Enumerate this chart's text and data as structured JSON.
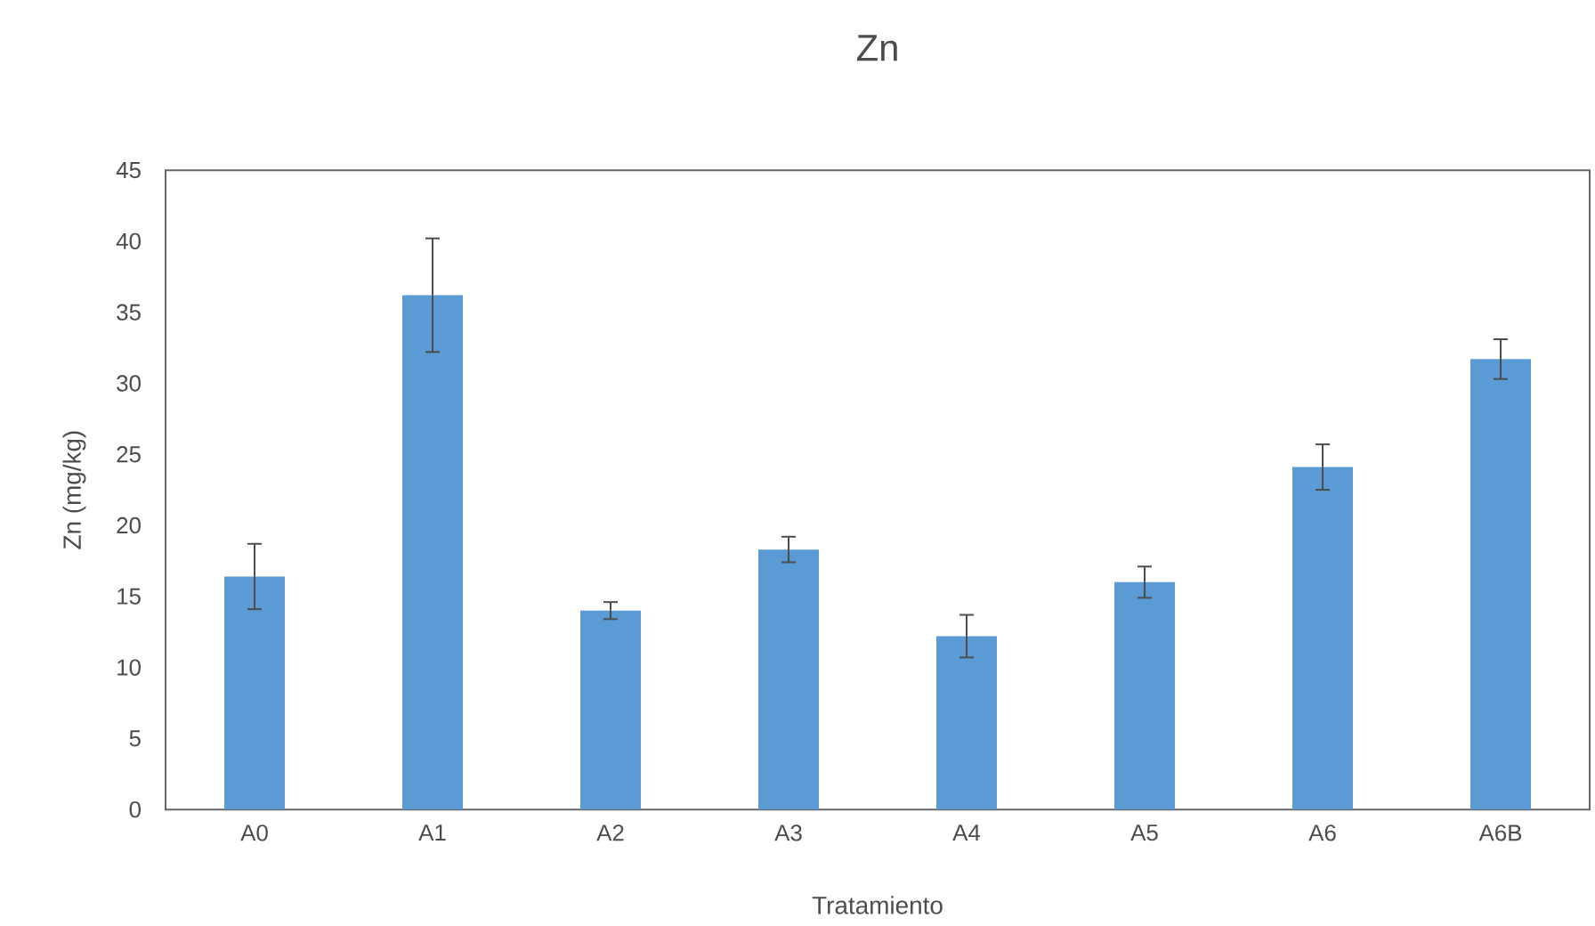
{
  "chart_data": {
    "type": "bar",
    "title": "Zn",
    "xlabel": "Tratamiento",
    "ylabel": "Zn (mg/kg)",
    "categories": [
      "A0",
      "A1",
      "A2",
      "A3",
      "A4",
      "A5",
      "A6",
      "A6B"
    ],
    "values": [
      16.4,
      36.2,
      14.0,
      18.3,
      12.2,
      16.0,
      24.1,
      31.7
    ],
    "errors": [
      2.3,
      4.0,
      0.6,
      0.9,
      1.5,
      1.1,
      1.6,
      1.4
    ],
    "color": "#5b9bd5",
    "ylim": [
      0,
      45
    ],
    "yticks": [
      0,
      5,
      10,
      15,
      20,
      25,
      30,
      35,
      40,
      45
    ],
    "grid": false
  }
}
